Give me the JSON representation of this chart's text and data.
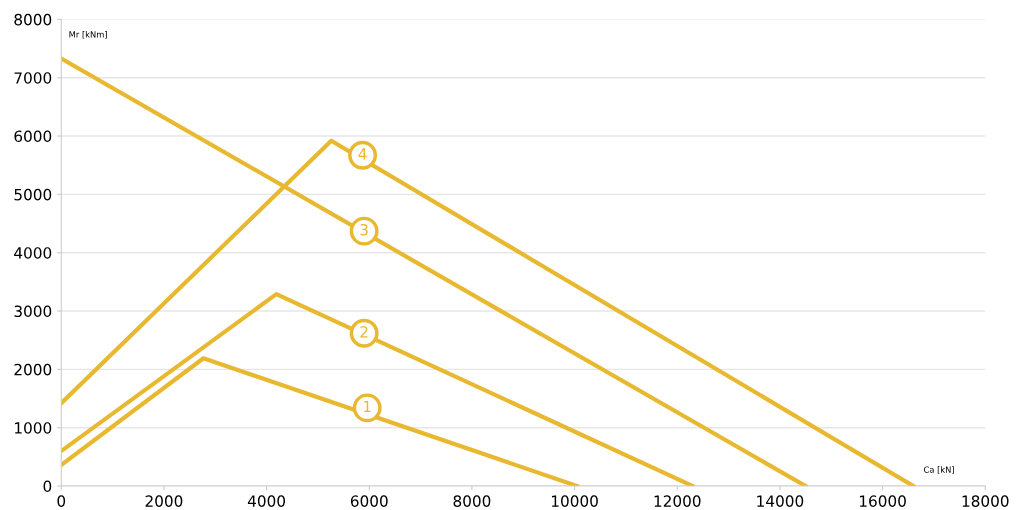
{
  "chart_data": {
    "type": "line",
    "xlabel": "Ca [kN]",
    "ylabel": "Mr [kNm]",
    "series": [
      {
        "color": "#e8b830",
        "x": [
          0,
          2770,
          10050
        ],
        "values": [
          360,
          2190,
          0
        ]
      },
      {
        "color": "#e8b830",
        "x": [
          0,
          4190,
          12300
        ],
        "values": [
          600,
          3290,
          0
        ]
      },
      {
        "color": "#e8b830",
        "x": [
          0,
          14500
        ],
        "values": [
          7330,
          0
        ]
      },
      {
        "color": "#e8b830",
        "x": [
          0,
          5260,
          16600
        ],
        "values": [
          1420,
          5920,
          0
        ]
      }
    ],
    "annotations": [
      {
        "text": "1",
        "x": 5960,
        "y": 1340
      },
      {
        "text": "2",
        "x": 5900,
        "y": 2620
      },
      {
        "text": "3",
        "x": 5900,
        "y": 4370
      },
      {
        "text": "4",
        "x": 5870,
        "y": 5670
      }
    ],
    "xlim": [
      0,
      18000
    ],
    "xticks": [
      0,
      2000,
      4000,
      6000,
      8000,
      10000,
      12000,
      14000,
      16000,
      18000
    ],
    "ylim": [
      0,
      8000
    ],
    "yticks": [
      0,
      1000,
      2000,
      3000,
      4000,
      5000,
      6000,
      7000,
      8000
    ],
    "grid": "y",
    "marker": "none",
    "line_style": "solid",
    "legend": false
  }
}
